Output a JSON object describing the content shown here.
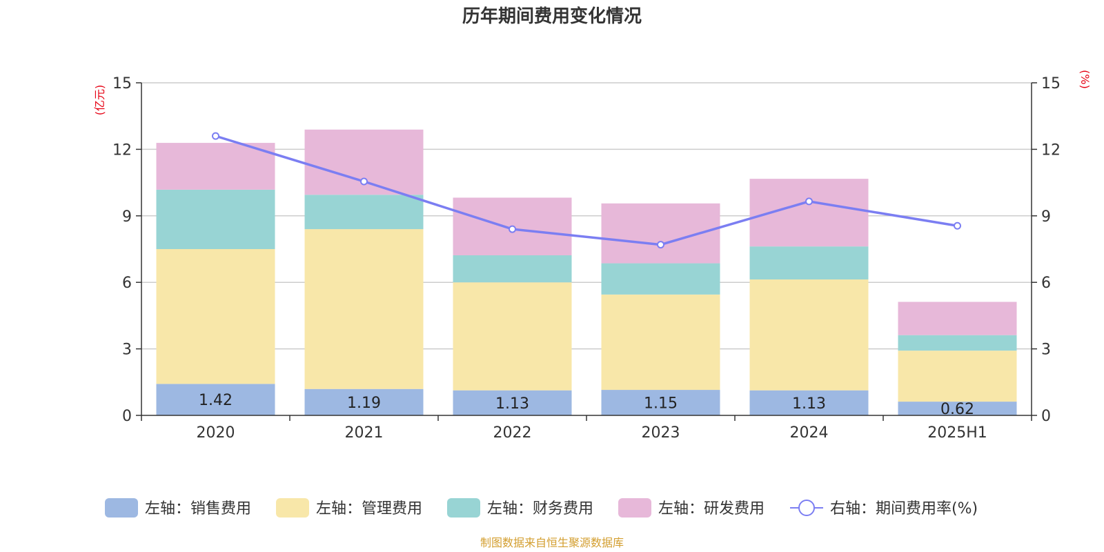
{
  "chart_data": {
    "type": "bar",
    "stacked": true,
    "title": "历年期间费用变化情况",
    "categories": [
      "2020",
      "2021",
      "2022",
      "2023",
      "2024",
      "2025H1"
    ],
    "y_left": {
      "unit_label": "(亿元)",
      "ylim": [
        0,
        15
      ],
      "ticks": [
        "0",
        "3",
        "6",
        "9",
        "12",
        "15"
      ]
    },
    "y_right": {
      "unit_label": "(%)",
      "ylim": [
        0,
        15
      ],
      "ticks": [
        "0",
        "3",
        "6",
        "9",
        "12",
        "15"
      ]
    },
    "grid": true,
    "legend_position": "bottom",
    "series": [
      {
        "name": "左轴：销售费用",
        "axis": "left",
        "type": "bar",
        "color": "#9db8e2",
        "values": [
          1.42,
          1.19,
          1.13,
          1.15,
          1.13,
          0.62
        ],
        "labels": [
          "1.42",
          "1.19",
          "1.13",
          "1.15",
          "1.13",
          "0.62"
        ]
      },
      {
        "name": "左轴：管理费用",
        "axis": "left",
        "type": "bar",
        "color": "#f8e7a9",
        "values": [
          6.08,
          7.21,
          4.87,
          4.3,
          5.0,
          2.3
        ]
      },
      {
        "name": "左轴：财务费用",
        "axis": "left",
        "type": "bar",
        "color": "#98d4d4",
        "values": [
          2.68,
          1.55,
          1.22,
          1.41,
          1.49,
          0.7
        ]
      },
      {
        "name": "左轴：研发费用",
        "axis": "left",
        "type": "bar",
        "color": "#e7b8d9",
        "values": [
          2.11,
          2.94,
          2.6,
          2.7,
          3.05,
          1.5
        ]
      },
      {
        "name": "右轴：期间费用率(%)",
        "axis": "right",
        "type": "line",
        "color": "#7b7ef2",
        "values": [
          12.6,
          10.55,
          8.4,
          7.7,
          9.65,
          8.55
        ]
      }
    ],
    "source": "制图数据来自恒生聚源数据库"
  },
  "colors": {
    "axis": "#333333",
    "grid": "#cccccc",
    "unit": "#e60012",
    "source": "#d39e2f"
  }
}
